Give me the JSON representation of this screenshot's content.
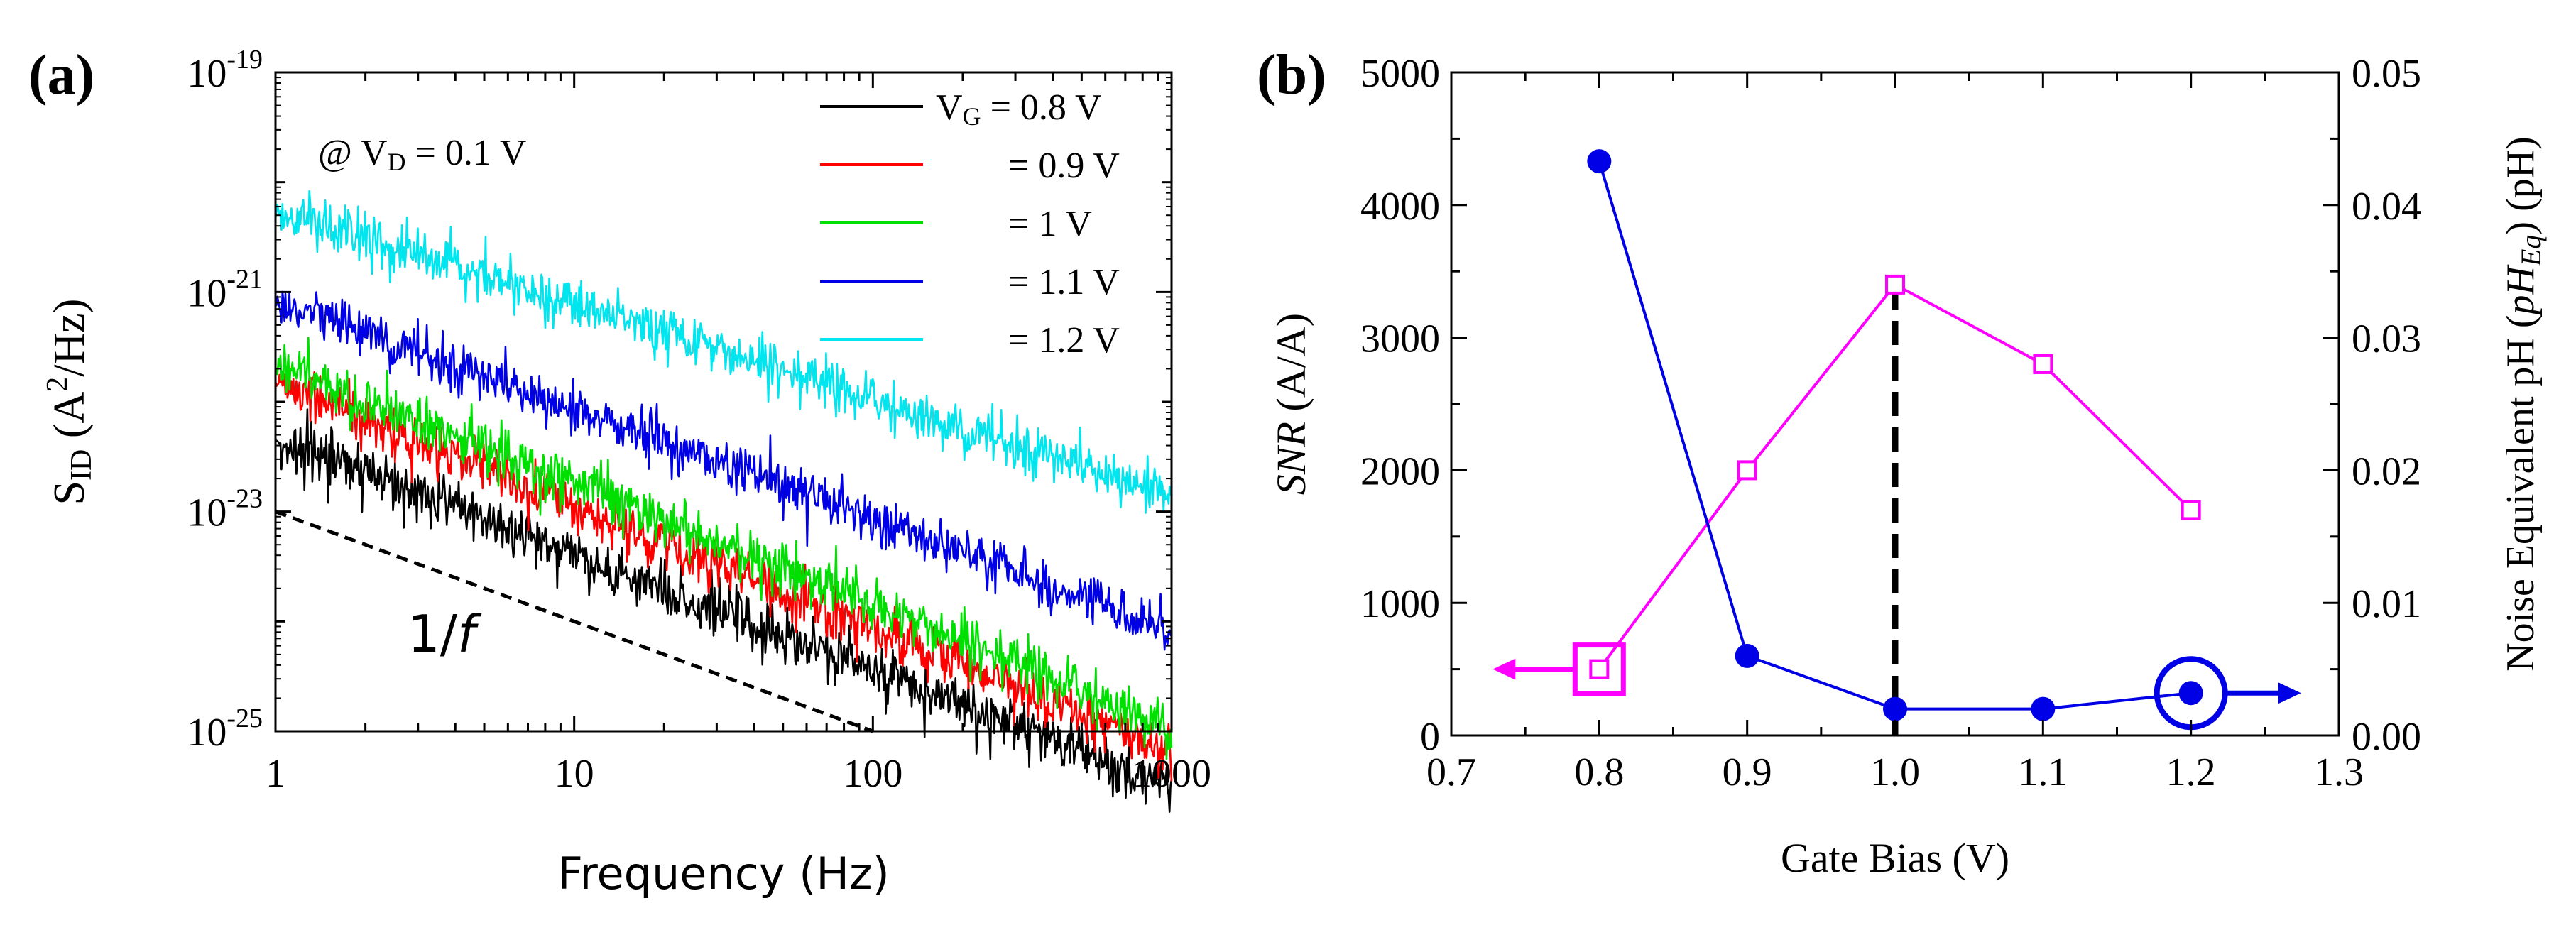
{
  "chart_data": [
    {
      "panel": "(a)",
      "type": "line",
      "x_scale": "log",
      "y_scale": "log",
      "xlim": [
        1,
        1000
      ],
      "ylim": [
        1e-25,
        1e-19
      ],
      "xlabel": "Frequency (Hz)",
      "ylabel": {
        "s": "S",
        "sub": "ID",
        "rest": " (A",
        "sup": "2",
        "tail": "/Hz)"
      },
      "x_ticks": [
        {
          "value": 1,
          "label": "1"
        },
        {
          "value": 10,
          "label": "10"
        },
        {
          "value": 100,
          "label": "100"
        },
        {
          "value": 1000,
          "label": "1000"
        }
      ],
      "y_ticks": [
        {
          "value": 1e-19,
          "base": "10",
          "exp": "-19"
        },
        {
          "value": 1e-21,
          "base": "10",
          "exp": "-21"
        },
        {
          "value": 1e-23,
          "base": "10",
          "exp": "-23"
        },
        {
          "value": 1e-25,
          "base": "10",
          "exp": "-25"
        }
      ],
      "annotation": {
        "at": "@ V",
        "sub": "D",
        "rest": " = 0.1 V"
      },
      "legend_position": "top-right",
      "legend": [
        {
          "prefix": "V",
          "sub": "G",
          "label": " = 0.8 V",
          "color": "#000000"
        },
        {
          "prefix": "",
          "sub": "",
          "label": "= 0.9 V",
          "color": "#ff0000"
        },
        {
          "prefix": "",
          "sub": "",
          "label": "= 1 V",
          "color": "#00e000"
        },
        {
          "prefix": "",
          "sub": "",
          "label": "= 1.1 V",
          "color": "#0000e6"
        },
        {
          "prefix": "",
          "sub": "",
          "label": "= 1.2 V",
          "color": "#00e5ee"
        }
      ],
      "series": [
        {
          "name": "VG = 0.8 V",
          "color": "#000000",
          "level_at_1Hz": 4.5e-23,
          "exponent": -1.05,
          "noise_decades": 0.12,
          "x": [
            1,
            1000
          ]
        },
        {
          "name": "VG = 0.9 V",
          "color": "#ff0000",
          "level_at_1Hz": 1.5e-22,
          "exponent": -1.12,
          "noise_decades": 0.12,
          "x": [
            1,
            1000
          ]
        },
        {
          "name": "VG = 1 V",
          "color": "#00e000",
          "level_at_1Hz": 2.2e-22,
          "exponent": -1.1,
          "noise_decades": 0.12,
          "x": [
            1,
            1000
          ]
        },
        {
          "name": "VG = 1.1 V",
          "color": "#0000e6",
          "level_at_1Hz": 8.5e-22,
          "exponent": -1.0,
          "noise_decades": 0.11,
          "x": [
            1,
            1000
          ]
        },
        {
          "name": "VG = 1.2 V",
          "color": "#00e5ee",
          "level_at_1Hz": 5.5e-21,
          "exponent": -0.86,
          "noise_decades": 0.11,
          "x": [
            1,
            1000
          ]
        }
      ],
      "reference_line": {
        "label": "1/",
        "label_italic": "f",
        "x": [
          1,
          100
        ],
        "y": [
          1e-23,
          1e-25
        ],
        "style": "dashed"
      }
    },
    {
      "panel": "(b)",
      "type": "line",
      "xlim": [
        0.7,
        1.3
      ],
      "xlabel": "Gate Bias (V)",
      "x_ticks": [
        "0.7",
        "0.8",
        "0.9",
        "1.0",
        "1.1",
        "1.2",
        "1.3"
      ],
      "left_axis": {
        "label_italic": "SNR",
        "label_rest": " (A/A)",
        "ylim": [
          0,
          5000
        ],
        "ticks": [
          "0",
          "1000",
          "2000",
          "3000",
          "4000",
          "5000"
        ]
      },
      "right_axis": {
        "label_pre": "Noise Equivalent pH (",
        "label_italic": "pH",
        "label_sub": "Eq",
        "label_post": ") (pH)",
        "ylim": [
          0,
          0.05
        ],
        "ticks": [
          "0.00",
          "0.01",
          "0.02",
          "0.03",
          "0.04",
          "0.05"
        ]
      },
      "series": [
        {
          "name": "SNR",
          "axis": "left",
          "marker": "open-square",
          "color": "#ff00ff",
          "x": [
            0.8,
            0.9,
            1.0,
            1.1,
            1.2
          ],
          "y": [
            500,
            2000,
            3400,
            2800,
            1700
          ]
        },
        {
          "name": "Noise Equivalent pH",
          "axis": "right",
          "marker": "filled-circle",
          "color": "#0000e6",
          "x": [
            0.8,
            0.9,
            1.0,
            1.1,
            1.2
          ],
          "y": [
            0.0433,
            0.006,
            0.002,
            0.002,
            0.0032
          ]
        }
      ],
      "vertical_marker": {
        "x": 1.0,
        "from": 0,
        "to": 3400,
        "style": "dashed",
        "color": "#000000"
      },
      "axis_indicators": [
        {
          "series": "SNR",
          "direction": "left",
          "color": "#ff00ff"
        },
        {
          "series": "Noise Equivalent pH",
          "direction": "right",
          "color": "#0000e6"
        }
      ]
    }
  ],
  "panel_labels": [
    "(a)",
    "(b)"
  ]
}
